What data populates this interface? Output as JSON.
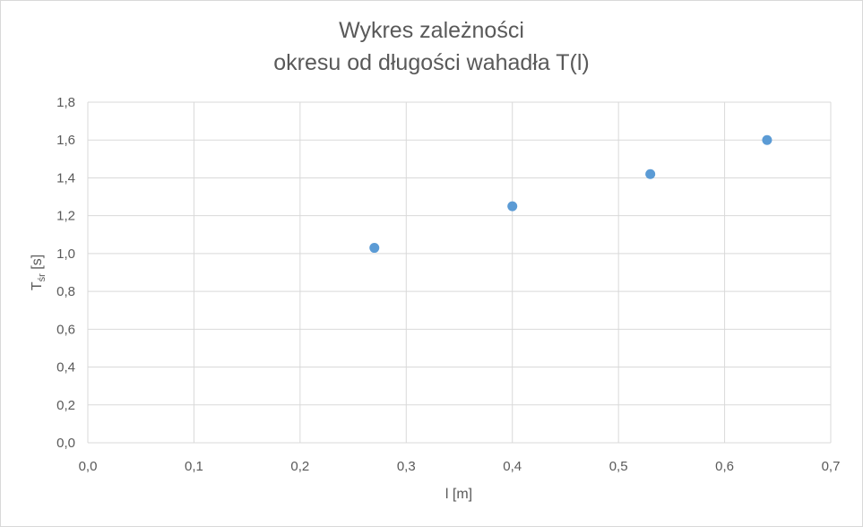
{
  "chart_data": {
    "type": "scatter",
    "title_lines": [
      "Wykres zależności",
      "okresu od długości wahadła T(l)"
    ],
    "xlabel": "l [m]",
    "ylabel": {
      "main": "T",
      "sub": "śr",
      "unit": " [s]"
    },
    "xlim": [
      0,
      0.7
    ],
    "ylim": [
      0,
      1.8
    ],
    "x_ticks": [
      "0,0",
      "0,1",
      "0,2",
      "0,3",
      "0,4",
      "0,5",
      "0,6",
      "0,7"
    ],
    "y_ticks": [
      "0,0",
      "0,2",
      "0,4",
      "0,6",
      "0,8",
      "1,0",
      "1,2",
      "1,4",
      "1,6",
      "1,8"
    ],
    "grid": true,
    "legend": "none",
    "marker_color": "#5b9bd5",
    "points": [
      {
        "x": 0.27,
        "y": 1.03
      },
      {
        "x": 0.4,
        "y": 1.25
      },
      {
        "x": 0.53,
        "y": 1.42
      },
      {
        "x": 0.64,
        "y": 1.6
      }
    ]
  }
}
